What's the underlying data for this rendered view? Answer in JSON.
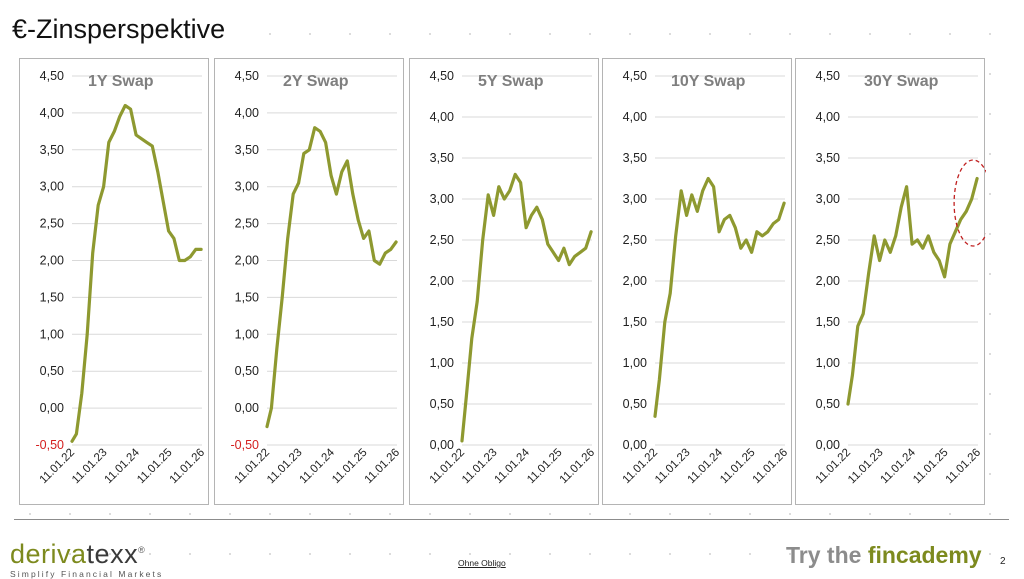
{
  "page": {
    "title": "€-Zinsperspektive",
    "footer_center": "Ohne Obligo",
    "footer_cta_prefix": "Try the ",
    "footer_cta_brand": "fincademy",
    "page_number": "2",
    "logo_word_a": "deriva",
    "logo_word_b": "texx",
    "logo_reg": "®",
    "logo_tagline": "Simplify Financial Markets"
  },
  "colors": {
    "series": "#8e9930",
    "negative_tick": "#d42020",
    "grid": "#d9d9d9",
    "annotation": "#c02020"
  },
  "chart_data": [
    {
      "type": "line",
      "title": "1Y Swap",
      "ylim": [
        -0.5,
        4.5
      ],
      "yticks": [
        "-0,50",
        "0,00",
        "0,50",
        "1,00",
        "1,50",
        "2,00",
        "2,50",
        "3,00",
        "3,50",
        "4,00",
        "4,50"
      ],
      "xlim": [
        "2022-01-11",
        "2026-01-11"
      ],
      "xticks": [
        "11.01.22",
        "11.01.23",
        "11.01.24",
        "11.01.25",
        "11.01.26"
      ],
      "series": [
        {
          "x": [
            "2022-01-11",
            "2022-03-01",
            "2022-05-01",
            "2022-07-01",
            "2022-09-01",
            "2022-11-01",
            "2023-01-01",
            "2023-03-01",
            "2023-05-01",
            "2023-07-01",
            "2023-09-01",
            "2023-11-01",
            "2024-01-01",
            "2024-03-01",
            "2024-05-01",
            "2024-07-01",
            "2024-09-01",
            "2024-11-01",
            "2025-01-01",
            "2025-03-01",
            "2025-05-01",
            "2025-07-01",
            "2025-09-01",
            "2025-11-01",
            "2026-01-01"
          ],
          "y": [
            -0.45,
            -0.35,
            0.2,
            1.0,
            2.1,
            2.75,
            3.0,
            3.6,
            3.75,
            3.95,
            4.1,
            4.05,
            3.7,
            3.65,
            3.6,
            3.55,
            3.2,
            2.8,
            2.4,
            2.3,
            2.0,
            2.0,
            2.05,
            2.15,
            2.15
          ]
        }
      ]
    },
    {
      "type": "line",
      "title": "2Y Swap",
      "ylim": [
        -0.5,
        4.5
      ],
      "yticks": [
        "-0,50",
        "0,00",
        "0,50",
        "1,00",
        "1,50",
        "2,00",
        "2,50",
        "3,00",
        "3,50",
        "4,00",
        "4,50"
      ],
      "xlim": [
        "2022-01-11",
        "2026-01-11"
      ],
      "xticks": [
        "11.01.22",
        "11.01.23",
        "11.01.24",
        "11.01.25",
        "11.01.26"
      ],
      "series": [
        {
          "x": [
            "2022-01-11",
            "2022-03-01",
            "2022-05-01",
            "2022-07-01",
            "2022-09-01",
            "2022-11-01",
            "2023-01-01",
            "2023-03-01",
            "2023-05-01",
            "2023-07-01",
            "2023-09-01",
            "2023-11-01",
            "2024-01-01",
            "2024-03-01",
            "2024-05-01",
            "2024-07-01",
            "2024-09-01",
            "2024-11-01",
            "2025-01-01",
            "2025-03-01",
            "2025-05-01",
            "2025-07-01",
            "2025-09-01",
            "2025-11-01",
            "2026-01-01"
          ],
          "y": [
            -0.25,
            0.0,
            0.8,
            1.5,
            2.3,
            2.9,
            3.05,
            3.45,
            3.5,
            3.8,
            3.75,
            3.6,
            3.15,
            2.9,
            3.2,
            3.35,
            2.9,
            2.55,
            2.3,
            2.4,
            2.0,
            1.95,
            2.1,
            2.15,
            2.25
          ]
        }
      ]
    },
    {
      "type": "line",
      "title": "5Y Swap",
      "ylim": [
        0,
        4.5
      ],
      "yticks": [
        "0,00",
        "0,50",
        "1,00",
        "1,50",
        "2,00",
        "2,50",
        "3,00",
        "3,50",
        "4,00",
        "4,50"
      ],
      "xlim": [
        "2022-01-11",
        "2026-01-11"
      ],
      "xticks": [
        "11.01.22",
        "11.01.23",
        "11.01.24",
        "11.01.25",
        "11.01.26"
      ],
      "series": [
        {
          "x": [
            "2022-01-11",
            "2022-03-01",
            "2022-05-01",
            "2022-07-01",
            "2022-09-01",
            "2022-11-01",
            "2023-01-01",
            "2023-03-01",
            "2023-05-01",
            "2023-07-01",
            "2023-09-01",
            "2023-11-01",
            "2024-01-01",
            "2024-03-01",
            "2024-05-01",
            "2024-07-01",
            "2024-09-01",
            "2024-11-01",
            "2025-01-01",
            "2025-03-01",
            "2025-05-01",
            "2025-07-01",
            "2025-09-01",
            "2025-11-01",
            "2026-01-01"
          ],
          "y": [
            0.05,
            0.6,
            1.3,
            1.75,
            2.5,
            3.05,
            2.8,
            3.15,
            3.0,
            3.1,
            3.3,
            3.2,
            2.65,
            2.8,
            2.9,
            2.75,
            2.45,
            2.35,
            2.25,
            2.4,
            2.2,
            2.3,
            2.35,
            2.4,
            2.6
          ]
        }
      ]
    },
    {
      "type": "line",
      "title": "10Y Swap",
      "ylim": [
        0,
        4.5
      ],
      "yticks": [
        "0,00",
        "0,50",
        "1,00",
        "1,50",
        "2,00",
        "2,50",
        "3,00",
        "3,50",
        "4,00",
        "4,50"
      ],
      "xlim": [
        "2022-01-11",
        "2026-01-11"
      ],
      "xticks": [
        "11.01.22",
        "11.01.23",
        "11.01.24",
        "11.01.25",
        "11.01.26"
      ],
      "series": [
        {
          "x": [
            "2022-01-11",
            "2022-03-01",
            "2022-05-01",
            "2022-07-01",
            "2022-09-01",
            "2022-11-01",
            "2023-01-01",
            "2023-03-01",
            "2023-05-01",
            "2023-07-01",
            "2023-09-01",
            "2023-11-01",
            "2024-01-01",
            "2024-03-01",
            "2024-05-01",
            "2024-07-01",
            "2024-09-01",
            "2024-11-01",
            "2025-01-01",
            "2025-03-01",
            "2025-05-01",
            "2025-07-01",
            "2025-09-01",
            "2025-11-01",
            "2026-01-01"
          ],
          "y": [
            0.35,
            0.8,
            1.5,
            1.85,
            2.55,
            3.1,
            2.8,
            3.05,
            2.85,
            3.1,
            3.25,
            3.15,
            2.6,
            2.75,
            2.8,
            2.65,
            2.4,
            2.5,
            2.35,
            2.6,
            2.55,
            2.6,
            2.7,
            2.75,
            2.95
          ]
        }
      ]
    },
    {
      "type": "line",
      "title": "30Y Swap",
      "ylim": [
        0,
        4.5
      ],
      "yticks": [
        "0,00",
        "0,50",
        "1,00",
        "1,50",
        "2,00",
        "2,50",
        "3,00",
        "3,50",
        "4,00",
        "4,50"
      ],
      "xlim": [
        "2022-01-11",
        "2026-01-11"
      ],
      "xticks": [
        "11.01.22",
        "11.01.23",
        "11.01.24",
        "11.01.25",
        "11.01.26"
      ],
      "series": [
        {
          "x": [
            "2022-01-11",
            "2022-03-01",
            "2022-05-01",
            "2022-07-01",
            "2022-09-01",
            "2022-11-01",
            "2023-01-01",
            "2023-03-01",
            "2023-05-01",
            "2023-07-01",
            "2023-09-01",
            "2023-11-01",
            "2024-01-01",
            "2024-03-01",
            "2024-05-01",
            "2024-07-01",
            "2024-09-01",
            "2024-11-01",
            "2025-01-01",
            "2025-03-01",
            "2025-05-01",
            "2025-07-01",
            "2025-09-01",
            "2025-11-01",
            "2026-01-01"
          ],
          "y": [
            0.5,
            0.85,
            1.45,
            1.6,
            2.1,
            2.55,
            2.25,
            2.5,
            2.35,
            2.55,
            2.9,
            3.15,
            2.45,
            2.5,
            2.4,
            2.55,
            2.35,
            2.25,
            2.05,
            2.45,
            2.6,
            2.75,
            2.85,
            3.0,
            3.25
          ]
        }
      ],
      "annotation": {
        "shape": "dashed-ellipse",
        "around": "end-of-series"
      }
    }
  ]
}
